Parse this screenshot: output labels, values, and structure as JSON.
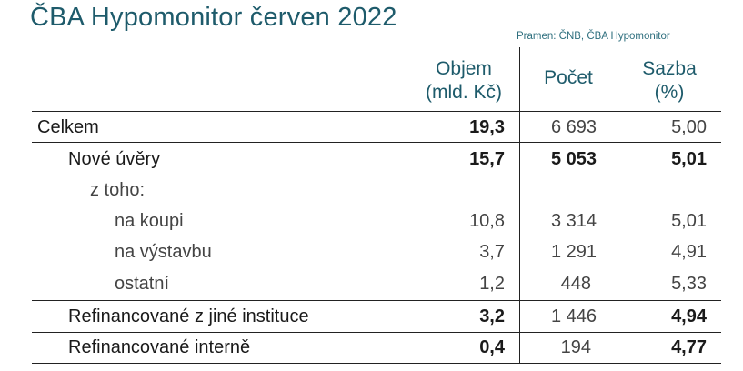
{
  "title": "ČBA Hypomonitor červen 2022",
  "source": "Pramen: ČNB, ČBA Hypomonitor",
  "columns": {
    "objem_line1": "Objem",
    "objem_line2": "(mld. Kč)",
    "pocet": "Počet",
    "sazba_line1": "Sazba",
    "sazba_line2": "(%)"
  },
  "rows": [
    {
      "label": "Celkem",
      "objem": "19,3",
      "pocet": "6 693",
      "sazba": "5,00"
    },
    {
      "label": "Nové úvěry",
      "objem": "15,7",
      "pocet": "5 053",
      "sazba": "5,01"
    },
    {
      "label": "z toho:",
      "objem": "",
      "pocet": "",
      "sazba": ""
    },
    {
      "label": "na koupi",
      "objem": "10,8",
      "pocet": "3 314",
      "sazba": "5,01"
    },
    {
      "label": "na výstavbu",
      "objem": "3,7",
      "pocet": "1 291",
      "sazba": "4,91"
    },
    {
      "label": "ostatní",
      "objem": "1,2",
      "pocet": "448",
      "sazba": "5,33"
    },
    {
      "label": "Refinancované z jiné instituce",
      "objem": "3,2",
      "pocet": "1 446",
      "sazba": "4,94"
    },
    {
      "label": "Refinancované interně",
      "objem": "0,4",
      "pocet": "194",
      "sazba": "4,77"
    }
  ]
}
